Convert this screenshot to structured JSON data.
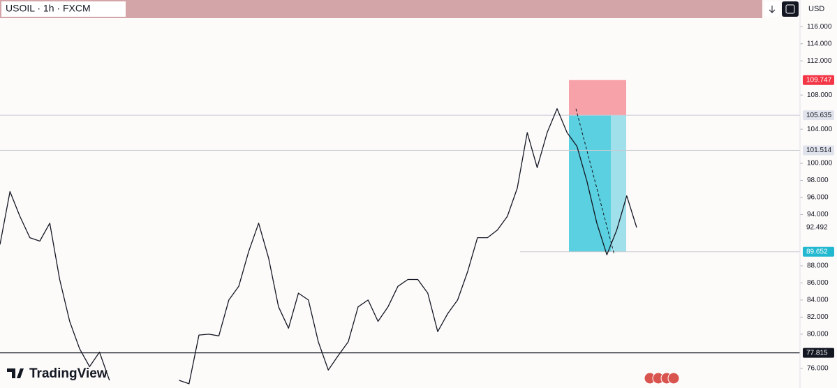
{
  "chart_data": {
    "type": "line",
    "title": "USOIL · 1h · FXCM",
    "currency": "USD",
    "watermark": "TradingView",
    "series": [
      {
        "name": "USOIL",
        "color": "#131722",
        "values": [
          90.5,
          96.7,
          93.8,
          91.3,
          90.9,
          93.0,
          86.4,
          81.5,
          78.3,
          76.2,
          77.9,
          74.6,
          null,
          null,
          null,
          null,
          null,
          null,
          74.6,
          74.2,
          79.9,
          80.0,
          79.8,
          84.0,
          85.6,
          89.7,
          93.0,
          88.9,
          83.2,
          80.7,
          84.8,
          84.0,
          79.1,
          75.8,
          77.5,
          79.1,
          83.2,
          84.0,
          81.5,
          83.2,
          85.6,
          86.4,
          86.4,
          84.8,
          80.3,
          82.4,
          84.0,
          87.3,
          91.3,
          91.3,
          92.2,
          93.8,
          97.1,
          103.6,
          99.5,
          103.6,
          106.4,
          103.6,
          102.0,
          97.9,
          93.0,
          89.3,
          92.2,
          96.2,
          92.492
        ]
      }
    ],
    "ylim": [
      73.7,
      117.0
    ],
    "yticks": [
      {
        "value": 116,
        "label": "116.000"
      },
      {
        "value": 114,
        "label": "114.000"
      },
      {
        "value": 112,
        "label": "112.000"
      },
      {
        "value": 108,
        "label": "108.000"
      },
      {
        "value": 104,
        "label": "104.000"
      },
      {
        "value": 100,
        "label": "100.000"
      },
      {
        "value": 98,
        "label": "98.000"
      },
      {
        "value": 96,
        "label": "96.000"
      },
      {
        "value": 94,
        "label": "94.000"
      },
      {
        "value": 88,
        "label": "88.000"
      },
      {
        "value": 86,
        "label": "86.000"
      },
      {
        "value": 84,
        "label": "84.000"
      },
      {
        "value": 82,
        "label": "82.000"
      },
      {
        "value": 80,
        "label": "80.000"
      },
      {
        "value": 76,
        "label": "76.000"
      }
    ],
    "price_labels": [
      {
        "value": 109.747,
        "color": "#f23645"
      },
      {
        "value": 105.635,
        "color": "#e0e3eb"
      },
      {
        "value": 101.514,
        "color": "#e0e3eb"
      },
      {
        "value": 89.652,
        "color": "#22b8cf"
      },
      {
        "value": 77.815,
        "color": "#131722"
      }
    ],
    "current_price": 92.492
  }
}
